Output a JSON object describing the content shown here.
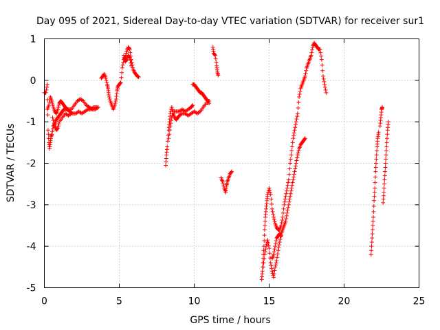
{
  "chart_data": {
    "type": "scatter",
    "title": "Day 095 of 2021, Sidereal Day-to-day VTEC variation (SDTVAR) for receiver sur1",
    "xlabel": "GPS time / hours",
    "ylabel": "SDTVAR / TECUs",
    "xlim": [
      0,
      25
    ],
    "ylim": [
      -5,
      1
    ],
    "xticks": [
      0,
      5,
      10,
      15,
      20,
      25
    ],
    "yticks": [
      -5,
      -4,
      -3,
      -2,
      -1,
      0,
      1
    ],
    "grid": true,
    "marker": "+",
    "color": "#ff0000",
    "series": [
      {
        "name": "sur1",
        "segments": [
          [
            [
              0.0,
              -0.3
            ],
            [
              0.1,
              -0.3
            ],
            [
              0.2,
              -0.1
            ],
            [
              0.25,
              -1.2
            ],
            [
              0.3,
              -1.5
            ],
            [
              0.35,
              -1.65
            ],
            [
              0.4,
              -1.5
            ],
            [
              0.45,
              -1.35
            ],
            [
              0.5,
              -1.3
            ],
            [
              0.6,
              -1.1
            ],
            [
              0.7,
              -1.05
            ],
            [
              0.8,
              -0.95
            ],
            [
              0.9,
              -0.9
            ],
            [
              1.0,
              -0.85
            ],
            [
              1.1,
              -0.8
            ],
            [
              1.2,
              -0.75
            ],
            [
              1.3,
              -0.7
            ],
            [
              1.5,
              -0.7
            ],
            [
              1.7,
              -0.75
            ],
            [
              1.9,
              -0.8
            ],
            [
              2.1,
              -0.8
            ],
            [
              2.3,
              -0.75
            ],
            [
              2.5,
              -0.8
            ],
            [
              2.7,
              -0.75
            ],
            [
              2.9,
              -0.7
            ],
            [
              3.1,
              -0.7
            ],
            [
              3.3,
              -0.65
            ],
            [
              3.5,
              -0.65
            ]
          ],
          [
            [
              0.2,
              -0.7
            ],
            [
              0.3,
              -0.6
            ],
            [
              0.4,
              -0.4
            ],
            [
              0.5,
              -0.5
            ],
            [
              0.6,
              -0.65
            ],
            [
              0.7,
              -0.75
            ],
            [
              0.8,
              -0.8
            ],
            [
              0.9,
              -0.7
            ],
            [
              1.0,
              -0.55
            ],
            [
              1.1,
              -0.5
            ],
            [
              1.2,
              -0.55
            ],
            [
              1.3,
              -0.6
            ],
            [
              1.4,
              -0.65
            ],
            [
              1.5,
              -0.7
            ],
            [
              1.6,
              -0.7
            ],
            [
              1.8,
              -0.7
            ],
            [
              2.0,
              -0.6
            ],
            [
              2.2,
              -0.5
            ],
            [
              2.4,
              -0.45
            ],
            [
              2.6,
              -0.5
            ],
            [
              2.8,
              -0.6
            ],
            [
              3.0,
              -0.65
            ],
            [
              3.2,
              -0.7
            ],
            [
              3.4,
              -0.7
            ],
            [
              3.6,
              -0.65
            ]
          ],
          [
            [
              0.55,
              -0.9
            ],
            [
              0.7,
              -1.1
            ],
            [
              0.8,
              -1.2
            ],
            [
              0.9,
              -1.15
            ],
            [
              1.0,
              -1.0
            ],
            [
              1.2,
              -0.9
            ],
            [
              1.4,
              -0.8
            ],
            [
              1.6,
              -0.85
            ],
            [
              1.8,
              -0.8
            ]
          ],
          [
            [
              3.8,
              0.05
            ],
            [
              3.9,
              0.1
            ],
            [
              4.0,
              0.15
            ],
            [
              4.1,
              0.05
            ],
            [
              4.2,
              -0.1
            ],
            [
              4.25,
              -0.2
            ],
            [
              4.3,
              -0.35
            ],
            [
              4.4,
              -0.5
            ],
            [
              4.5,
              -0.6
            ],
            [
              4.6,
              -0.7
            ],
            [
              4.7,
              -0.6
            ],
            [
              4.8,
              -0.45
            ],
            [
              4.85,
              -0.25
            ],
            [
              4.9,
              -0.15
            ],
            [
              5.0,
              -0.1
            ],
            [
              5.1,
              -0.05
            ],
            [
              5.2,
              0.3
            ],
            [
              5.3,
              0.5
            ],
            [
              5.4,
              0.55
            ],
            [
              5.5,
              0.7
            ],
            [
              5.6,
              0.8
            ],
            [
              5.7,
              0.75
            ],
            [
              5.8,
              0.5
            ],
            [
              5.9,
              0.3
            ],
            [
              6.0,
              0.2
            ],
            [
              6.1,
              0.15
            ],
            [
              6.2,
              0.1
            ],
            [
              6.3,
              0.08
            ]
          ],
          [
            [
              5.3,
              0.6
            ],
            [
              5.4,
              0.45
            ],
            [
              5.5,
              0.5
            ],
            [
              5.6,
              0.6
            ],
            [
              5.7,
              0.55
            ],
            [
              5.8,
              0.35
            ]
          ],
          [
            [
              8.1,
              -2.05
            ],
            [
              8.15,
              -1.8
            ],
            [
              8.2,
              -1.6
            ],
            [
              8.3,
              -1.2
            ],
            [
              8.35,
              -1.0
            ],
            [
              8.4,
              -0.8
            ],
            [
              8.5,
              -0.65
            ],
            [
              8.6,
              -0.8
            ],
            [
              8.7,
              -0.9
            ],
            [
              8.8,
              -0.95
            ],
            [
              8.9,
              -0.9
            ],
            [
              9.0,
              -0.85
            ],
            [
              9.2,
              -0.8
            ],
            [
              9.4,
              -0.8
            ],
            [
              9.6,
              -0.85
            ],
            [
              9.8,
              -0.8
            ],
            [
              10.0,
              -0.75
            ],
            [
              10.2,
              -0.8
            ],
            [
              10.4,
              -0.75
            ],
            [
              10.6,
              -0.65
            ],
            [
              10.8,
              -0.55
            ],
            [
              11.0,
              -0.55
            ]
          ],
          [
            [
              8.3,
              -1.4
            ],
            [
              8.4,
              -1.1
            ],
            [
              8.5,
              -0.9
            ],
            [
              8.6,
              -0.75
            ],
            [
              8.8,
              -0.75
            ],
            [
              9.0,
              -0.75
            ],
            [
              9.2,
              -0.7
            ],
            [
              9.4,
              -0.75
            ],
            [
              9.6,
              -0.7
            ],
            [
              9.8,
              -0.65
            ],
            [
              9.9,
              -0.6
            ]
          ],
          [
            [
              9.9,
              -0.1
            ],
            [
              10.0,
              -0.1
            ],
            [
              10.1,
              -0.15
            ],
            [
              10.2,
              -0.2
            ],
            [
              10.3,
              -0.25
            ],
            [
              10.4,
              -0.3
            ],
            [
              10.5,
              -0.3
            ],
            [
              10.6,
              -0.35
            ],
            [
              10.7,
              -0.4
            ],
            [
              10.8,
              -0.45
            ],
            [
              10.9,
              -0.5
            ],
            [
              11.0,
              -0.5
            ]
          ],
          [
            [
              11.25,
              0.8
            ],
            [
              11.3,
              0.65
            ],
            [
              11.4,
              0.6
            ],
            [
              11.5,
              0.35
            ],
            [
              11.55,
              0.2
            ],
            [
              11.6,
              0.12
            ]
          ],
          [
            [
              11.8,
              -2.35
            ],
            [
              11.9,
              -2.45
            ],
            [
              12.0,
              -2.6
            ],
            [
              12.1,
              -2.7
            ],
            [
              12.15,
              -2.55
            ],
            [
              12.2,
              -2.45
            ],
            [
              12.3,
              -2.35
            ],
            [
              12.4,
              -2.25
            ],
            [
              12.5,
              -2.2
            ]
          ],
          [
            [
              14.5,
              -4.8
            ],
            [
              14.55,
              -4.6
            ],
            [
              14.6,
              -4.3
            ],
            [
              14.65,
              -4.0
            ],
            [
              14.7,
              -3.6
            ],
            [
              14.75,
              -3.3
            ],
            [
              14.8,
              -3.1
            ],
            [
              14.85,
              -2.9
            ],
            [
              14.9,
              -2.75
            ],
            [
              15.0,
              -2.6
            ],
            [
              15.1,
              -2.75
            ],
            [
              15.2,
              -3.1
            ],
            [
              15.3,
              -3.3
            ],
            [
              15.4,
              -3.45
            ],
            [
              15.5,
              -3.55
            ],
            [
              15.6,
              -3.6
            ],
            [
              15.7,
              -3.6
            ],
            [
              15.8,
              -3.5
            ],
            [
              15.9,
              -3.3
            ],
            [
              16.0,
              -3.0
            ],
            [
              16.1,
              -2.8
            ],
            [
              16.2,
              -2.6
            ],
            [
              16.3,
              -2.4
            ],
            [
              16.4,
              -2.0
            ],
            [
              16.5,
              -1.7
            ],
            [
              16.6,
              -1.4
            ],
            [
              16.7,
              -1.2
            ],
            [
              16.8,
              -1.0
            ],
            [
              16.9,
              -0.8
            ],
            [
              17.0,
              -0.4
            ],
            [
              17.1,
              -0.2
            ],
            [
              17.2,
              -0.1
            ],
            [
              17.3,
              0.0
            ],
            [
              17.4,
              0.1
            ],
            [
              17.5,
              0.3
            ],
            [
              17.6,
              0.4
            ],
            [
              17.7,
              0.5
            ],
            [
              17.8,
              0.6
            ],
            [
              17.9,
              0.8
            ],
            [
              18.0,
              0.9
            ],
            [
              18.1,
              0.85
            ],
            [
              18.2,
              0.8
            ],
            [
              18.3,
              0.75
            ],
            [
              18.4,
              0.75
            ],
            [
              18.5,
              0.5
            ],
            [
              18.6,
              0.1
            ],
            [
              18.7,
              -0.1
            ],
            [
              18.8,
              -0.3
            ]
          ],
          [
            [
              14.6,
              -4.5
            ],
            [
              14.7,
              -4.2
            ],
            [
              14.8,
              -4.0
            ],
            [
              14.9,
              -3.85
            ],
            [
              15.0,
              -4.05
            ],
            [
              15.1,
              -4.4
            ],
            [
              15.2,
              -4.6
            ],
            [
              15.3,
              -4.75
            ],
            [
              15.4,
              -4.5
            ],
            [
              15.5,
              -4.35
            ],
            [
              15.6,
              -4.1
            ],
            [
              15.7,
              -3.9
            ],
            [
              15.8,
              -3.7
            ],
            [
              15.9,
              -3.6
            ],
            [
              16.0,
              -3.5
            ],
            [
              16.1,
              -3.4
            ],
            [
              16.2,
              -3.2
            ],
            [
              16.3,
              -3.0
            ],
            [
              16.4,
              -2.8
            ],
            [
              16.5,
              -2.6
            ],
            [
              16.6,
              -2.4
            ],
            [
              16.7,
              -2.2
            ],
            [
              16.8,
              -2.0
            ],
            [
              16.9,
              -1.8
            ],
            [
              17.0,
              -1.65
            ],
            [
              17.1,
              -1.55
            ],
            [
              17.2,
              -1.5
            ],
            [
              17.3,
              -1.45
            ],
            [
              17.4,
              -1.4
            ]
          ],
          [
            [
              15.2,
              -4.3
            ],
            [
              15.3,
              -4.2
            ],
            [
              15.4,
              -4.0
            ],
            [
              15.5,
              -3.8
            ],
            [
              15.6,
              -3.75
            ],
            [
              15.7,
              -3.7
            ],
            [
              15.8,
              -3.75
            ]
          ],
          [
            [
              21.8,
              -4.2
            ],
            [
              21.85,
              -3.9
            ],
            [
              21.9,
              -3.6
            ],
            [
              21.95,
              -3.3
            ],
            [
              22.0,
              -2.9
            ],
            [
              22.05,
              -2.6
            ],
            [
              22.1,
              -2.2
            ],
            [
              22.15,
              -1.9
            ],
            [
              22.2,
              -1.6
            ],
            [
              22.25,
              -1.4
            ],
            [
              22.3,
              -1.25
            ]
          ],
          [
            [
              22.4,
              -1.1
            ],
            [
              22.45,
              -0.9
            ],
            [
              22.5,
              -0.7
            ],
            [
              22.55,
              -0.65
            ]
          ],
          [
            [
              22.6,
              -2.95
            ],
            [
              22.65,
              -2.7
            ],
            [
              22.7,
              -2.4
            ],
            [
              22.75,
              -2.1
            ],
            [
              22.8,
              -1.8
            ],
            [
              22.85,
              -1.5
            ],
            [
              22.9,
              -1.2
            ],
            [
              22.95,
              -1.0
            ]
          ]
        ]
      }
    ]
  }
}
